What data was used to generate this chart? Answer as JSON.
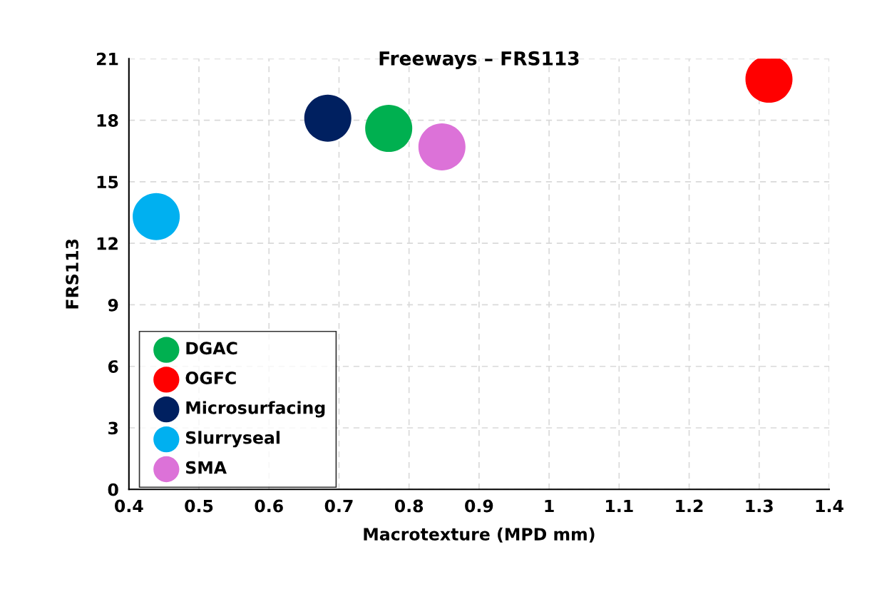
{
  "chart_data": {
    "type": "bubble",
    "title": "Freeways – FRS113",
    "xlabel": "Macrotexture (MPD mm)",
    "ylabel": "FRS113",
    "series": [
      {
        "name": "DGAC",
        "color": "#00b050",
        "x": [
          0.771
        ],
        "values": [
          17.6
        ],
        "sizes": [
          1
        ]
      },
      {
        "name": "OGFC",
        "color": "#ff0000",
        "x": [
          1.314
        ],
        "values": [
          20.0
        ],
        "sizes": [
          1
        ]
      },
      {
        "name": "Microsurfacing",
        "color": "#002060",
        "x": [
          0.684
        ],
        "values": [
          18.1
        ],
        "sizes": [
          1
        ]
      },
      {
        "name": "Slurryseal",
        "color": "#00b0f0",
        "x": [
          0.439
        ],
        "values": [
          13.3
        ],
        "sizes": [
          1
        ]
      },
      {
        "name": "SMA",
        "color": "#dc72d8",
        "x": [
          0.847
        ],
        "values": [
          16.7
        ],
        "sizes": [
          1
        ]
      }
    ],
    "xlim": [
      0.4,
      1.4
    ],
    "xticks": [
      0.4,
      0.5,
      0.6,
      0.7,
      0.8,
      0.9,
      1,
      1.1,
      1.2,
      1.3,
      1.4
    ],
    "ylim": [
      0,
      21
    ],
    "yticks": [
      0,
      3,
      6,
      9,
      12,
      15,
      18,
      21
    ],
    "grid": true,
    "legend": "bottom left"
  }
}
